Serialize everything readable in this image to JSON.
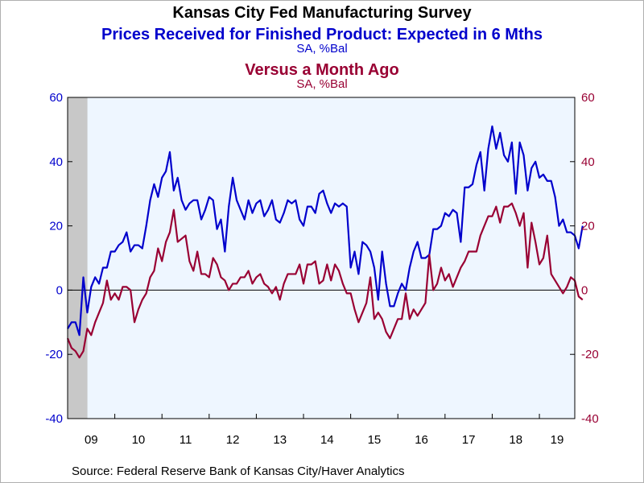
{
  "chart_data": {
    "type": "line",
    "title": "Kansas City Fed Manufacturing Survey",
    "source": "Source:  Federal Reserve Bank of Kansas City/Haver Analytics",
    "left_axis": {
      "ylim": [
        -40,
        60
      ],
      "ticks": [
        "60",
        "40",
        "20",
        "0",
        "-20",
        "-40"
      ],
      "color": "#0000cc"
    },
    "right_axis": {
      "ylim": [
        -40,
        60
      ],
      "ticks": [
        "60",
        "40",
        "20",
        "0",
        "-20",
        "-40"
      ],
      "color": "#990033"
    },
    "x_ticks": [
      "09",
      "10",
      "11",
      "12",
      "13",
      "14",
      "15",
      "16",
      "17",
      "18",
      "19"
    ],
    "x_range_years": [
      2009,
      2019.75
    ],
    "recession_shade": {
      "from": 2009.0,
      "to": 2009.42,
      "color": "#c8c8c8"
    },
    "plot_bg": "#eef6ff",
    "zero_line": true,
    "series": [
      {
        "name": "Prices Received for Finished Product: Expected in 6 Mths",
        "unit": "SA, %Bal",
        "axis": "left",
        "color": "#0000cc",
        "start": "2009-01",
        "values": [
          -12,
          -10,
          -10,
          -14,
          4,
          -7,
          1,
          4,
          2,
          7,
          7,
          12,
          12,
          14,
          15,
          18,
          12,
          14,
          14,
          13,
          20,
          28,
          33,
          29,
          35,
          37,
          43,
          31,
          35,
          28,
          25,
          27,
          28,
          28,
          22,
          25,
          29,
          28,
          19,
          22,
          12,
          26,
          35,
          28,
          25,
          22,
          28,
          24,
          27,
          28,
          23,
          25,
          28,
          22,
          21,
          24,
          28,
          27,
          28,
          22,
          20,
          26,
          26,
          24,
          30,
          31,
          27,
          24,
          27,
          26,
          27,
          26,
          7,
          12,
          5,
          15,
          14,
          12,
          7,
          -3,
          12,
          2,
          -5,
          -5,
          -1,
          2,
          0,
          7,
          12,
          15,
          10,
          10,
          11,
          19,
          19,
          20,
          24,
          23,
          25,
          24,
          15,
          32,
          32,
          33,
          39,
          43,
          31,
          44,
          51,
          44,
          49,
          42,
          40,
          46,
          30,
          46,
          42,
          31,
          38,
          40,
          35,
          36,
          34,
          34,
          29,
          20,
          22,
          18,
          18,
          17,
          13,
          20
        ]
      },
      {
        "name": "Versus a Month Ago",
        "unit": "SA, %Bal",
        "axis": "right",
        "color": "#990033",
        "start": "2009-01",
        "values": [
          -15,
          -18,
          -19,
          -21,
          -19,
          -12,
          -14,
          -10,
          -7,
          -4,
          3,
          -3,
          -1,
          -3,
          1,
          1,
          0,
          -10,
          -6,
          -3,
          -1,
          4,
          6,
          13,
          9,
          15,
          18,
          25,
          15,
          16,
          17,
          9,
          6,
          12,
          5,
          5,
          4,
          10,
          8,
          4,
          3,
          0,
          2,
          2,
          4,
          4,
          6,
          2,
          4,
          5,
          2,
          1,
          -1,
          1,
          -3,
          2,
          5,
          5,
          5,
          8,
          2,
          8,
          8,
          9,
          2,
          3,
          8,
          3,
          8,
          6,
          2,
          -1,
          -1,
          -6,
          -10,
          -7,
          -4,
          4,
          -9,
          -7,
          -9,
          -13,
          -15,
          -12,
          -9,
          -9,
          -1,
          -9,
          -6,
          -8,
          -6,
          -4,
          11,
          0,
          2,
          7,
          3,
          5,
          1,
          4,
          7,
          9,
          12,
          12,
          12,
          17,
          20,
          23,
          23,
          26,
          21,
          26,
          26,
          27,
          24,
          20,
          24,
          7,
          21,
          15,
          8,
          10,
          17,
          5,
          3,
          1,
          -1,
          1,
          4,
          3,
          -2,
          -3
        ]
      }
    ]
  }
}
